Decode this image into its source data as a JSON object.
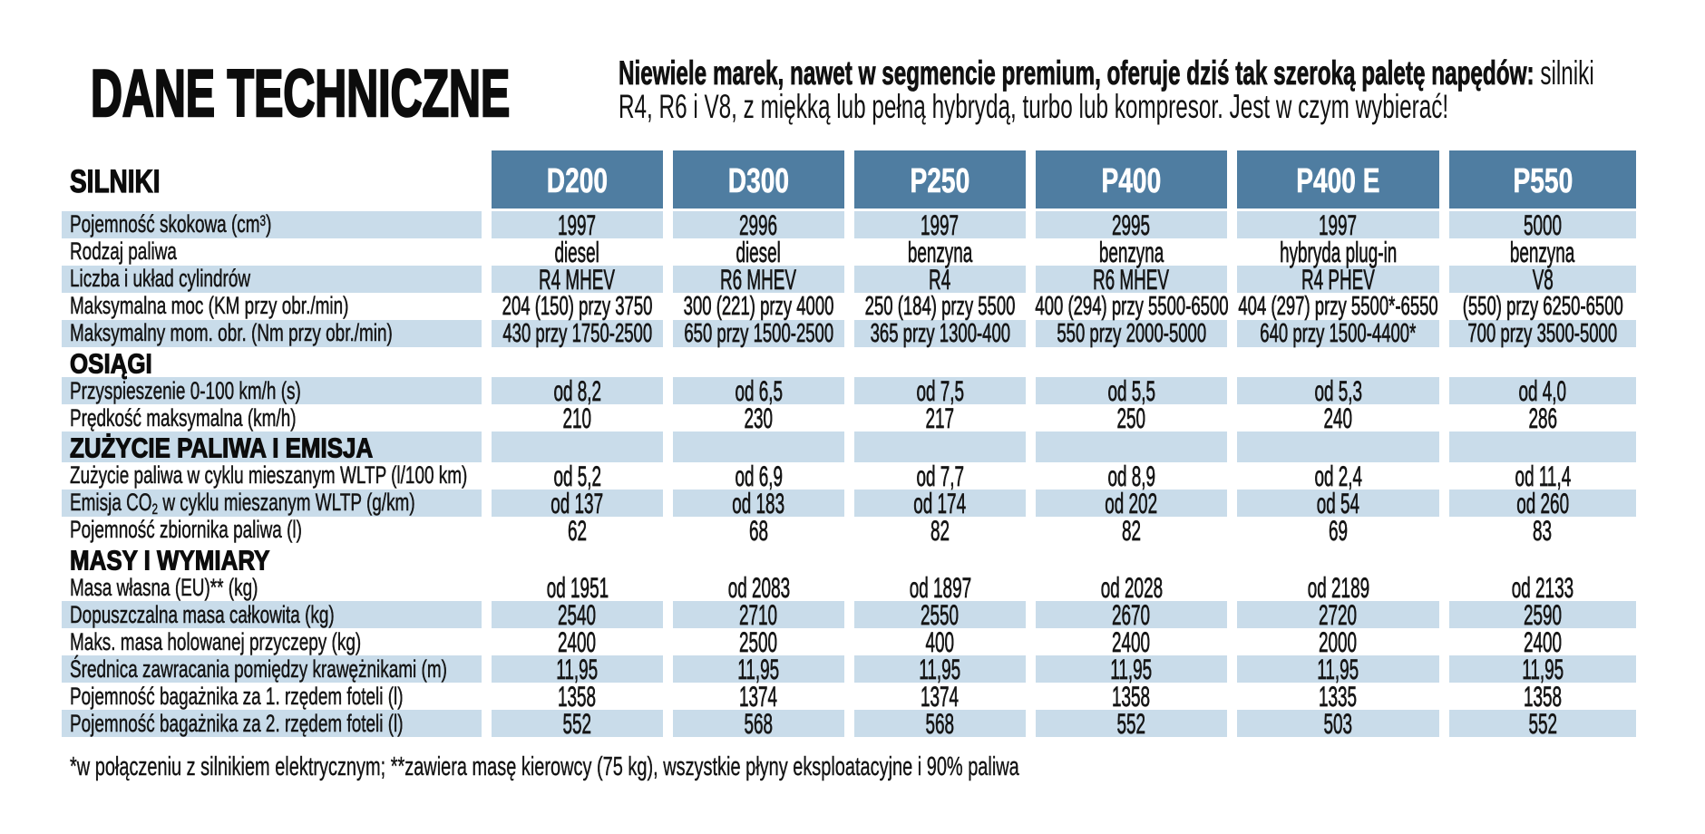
{
  "page": {
    "title": "DANE TECHNICZNE",
    "intro": {
      "bold": "Niewiele marek, nawet w segmencie premium, oferuje dziś tak szeroką paletę napędów:",
      "regular": "silniki R4, R6 i V8, z miękką lub pełną hybrydą, turbo lub kompresor. Jest w czym wybierać!"
    },
    "footnote": "*w połączeniu z silnikiem elektrycznym; **zawiera masę kierowcy (75 kg), wszystkie płyny eksploatacyjne i 90% paliwa"
  },
  "colors": {
    "column_header_bg": "#4f7da1",
    "stripe_bg": "#c9dcea",
    "column_header_text": "#ffffff",
    "text": "#151515",
    "background": "#ffffff"
  },
  "table": {
    "first_section_label": "SILNIKI",
    "columns": [
      "D200",
      "D300",
      "P250",
      "P400",
      "P400 E",
      "P550"
    ],
    "rows": [
      {
        "type": "data",
        "striped": true,
        "label": "Pojemność skokowa (cm³)",
        "values": [
          "1997",
          "2996",
          "1997",
          "2995",
          "1997",
          "5000"
        ]
      },
      {
        "type": "data",
        "striped": false,
        "label": "Rodzaj paliwa",
        "values": [
          "diesel",
          "diesel",
          "benzyna",
          "benzyna",
          "hybryda plug-in",
          "benzyna"
        ]
      },
      {
        "type": "data",
        "striped": true,
        "label": "Liczba i układ cylindrów",
        "values": [
          "R4 MHEV",
          "R6 MHEV",
          "R4",
          "R6 MHEV",
          "R4 PHEV",
          "V8"
        ]
      },
      {
        "type": "data",
        "striped": false,
        "small": true,
        "label": "Maksymalna moc (KM przy obr./min)",
        "values": [
          "204 (150) przy 3750",
          "300 (221) przy 4000",
          "250 (184) przy 5500",
          "400 (294) przy 5500-6500",
          "404 (297) przy 5500*-6550",
          "(550) przy 6250-6500"
        ]
      },
      {
        "type": "data",
        "striped": true,
        "small": true,
        "label": "Maksymalny mom. obr. (Nm przy obr./min)",
        "values": [
          "430 przy 1750-2500",
          "650 przy 1500-2500",
          "365 przy 1300-400",
          "550 przy 2000-5000",
          "640 przy 1500-4400*",
          "700 przy 3500-5000"
        ]
      },
      {
        "type": "section",
        "striped": false,
        "label": "OSIĄGI"
      },
      {
        "type": "data",
        "striped": true,
        "label": "Przyspieszenie 0-100 km/h (s)",
        "values": [
          "od 8,2",
          "od 6,5",
          "od 7,5",
          "od 5,5",
          "od 5,3",
          "od 4,0"
        ]
      },
      {
        "type": "data",
        "striped": false,
        "label": "Prędkość maksymalna (km/h)",
        "values": [
          "210",
          "230",
          "217",
          "250",
          "240",
          "286"
        ]
      },
      {
        "type": "section",
        "striped": true,
        "label": "ZUŻYCIE PALIWA I EMISJA"
      },
      {
        "type": "data",
        "striped": false,
        "label": "Zużycie paliwa w cyklu mieszanym WLTP (l/100 km)",
        "values": [
          "od 5,2",
          "od 6,9",
          "od 7,7",
          "od 8,9",
          "od 2,4",
          "od 11,4"
        ]
      },
      {
        "type": "data",
        "striped": true,
        "label": "Emisja CO₂ w cyklu mieszanym WLTP (g/km)",
        "values": [
          "od 137",
          "od 183",
          "od 174",
          "od 202",
          "od 54",
          "od 260"
        ]
      },
      {
        "type": "data",
        "striped": false,
        "label": "Pojemność zbiornika paliwa (l)",
        "values": [
          "62",
          "68",
          "82",
          "82",
          "69",
          "83"
        ]
      },
      {
        "type": "section",
        "striped": false,
        "label": "MASY I WYMIARY"
      },
      {
        "type": "data",
        "striped": false,
        "label": "Masa własna (EU)** (kg)",
        "values": [
          "od 1951",
          "od 2083",
          "od 1897",
          "od 2028",
          "od 2189",
          "od 2133"
        ]
      },
      {
        "type": "data",
        "striped": true,
        "label": "Dopuszczalna masa całkowita (kg)",
        "values": [
          "2540",
          "2710",
          "2550",
          "2670",
          "2720",
          "2590"
        ]
      },
      {
        "type": "data",
        "striped": false,
        "label": "Maks. masa holowanej przyczepy (kg)",
        "values": [
          "2400",
          "2500",
          "400",
          "2400",
          "2000",
          "2400"
        ]
      },
      {
        "type": "data",
        "striped": true,
        "label": "Średnica zawracania pomiędzy krawężnikami (m)",
        "values": [
          "11,95",
          "11,95",
          "11,95",
          "11,95",
          "11,95",
          "11,95"
        ]
      },
      {
        "type": "data",
        "striped": false,
        "label": "Pojemność bagażnika za 1. rzędem foteli (l)",
        "values": [
          "1358",
          "1374",
          "1374",
          "1358",
          "1335",
          "1358"
        ]
      },
      {
        "type": "data",
        "striped": true,
        "label": "Pojemność bagażnika za 2. rzędem foteli (l)",
        "values": [
          "552",
          "568",
          "568",
          "552",
          "503",
          "552"
        ]
      }
    ]
  }
}
